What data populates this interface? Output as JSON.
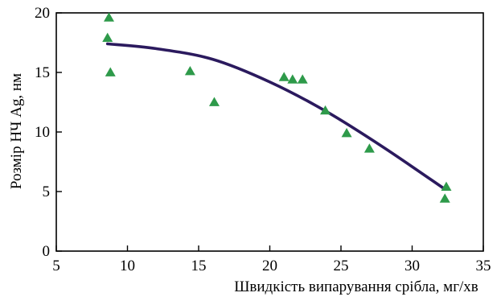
{
  "chart_data": {
    "type": "scatter",
    "title": "",
    "xlabel": "Швидкість випарування срібла, мг/хв",
    "ylabel": "Розмір НЧ Ag, нм",
    "xlim": [
      5,
      35
    ],
    "ylim": [
      0,
      20
    ],
    "xticks": [
      5,
      10,
      15,
      20,
      25,
      30,
      35
    ],
    "yticks": [
      0,
      5,
      10,
      15,
      20
    ],
    "grid": false,
    "legend": "none",
    "colors": {
      "points": "#2e9a4a",
      "trend": "#2b1a5e",
      "axes": "#000000"
    },
    "series": [
      {
        "values": [
          [
            8.7,
            19.6
          ],
          [
            8.6,
            17.9
          ],
          [
            8.8,
            15.0
          ],
          [
            14.4,
            15.1
          ],
          [
            16.1,
            12.5
          ],
          [
            21.0,
            14.6
          ],
          [
            21.6,
            14.4
          ],
          [
            22.3,
            14.4
          ],
          [
            23.9,
            11.8
          ],
          [
            25.4,
            9.9
          ],
          [
            27.0,
            8.6
          ],
          [
            32.4,
            5.4
          ],
          [
            32.3,
            4.4
          ]
        ]
      }
    ],
    "trend_line": {
      "type": "quadratic",
      "x_range": [
        8.6,
        32.3
      ],
      "points": [
        [
          8.6,
          17.4
        ],
        [
          12,
          17.0
        ],
        [
          16,
          16.1
        ],
        [
          20,
          14.2
        ],
        [
          24,
          11.7
        ],
        [
          28,
          8.7
        ],
        [
          32.3,
          5.2
        ]
      ]
    }
  }
}
